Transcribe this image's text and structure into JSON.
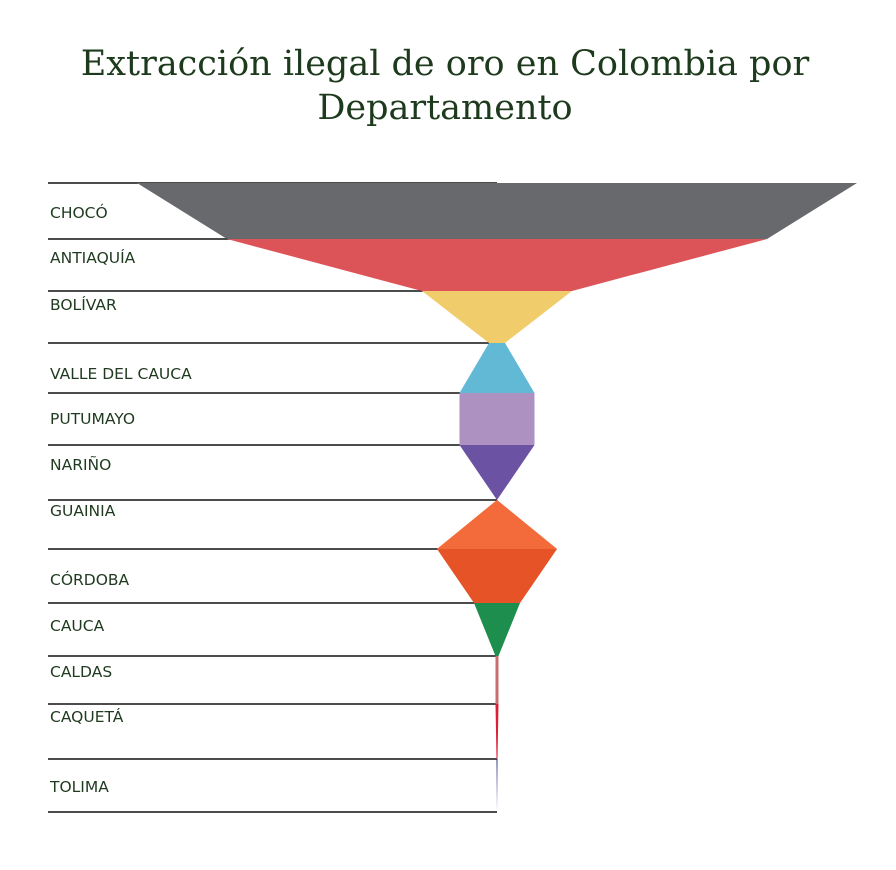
{
  "chart_data": {
    "type": "funnel",
    "title": "Extracción ilegal de oro en Colombia por\nDepartamento",
    "categories": [
      "CHOCÓ",
      "ANTIAQUÍA",
      "BOLÍVAR",
      "VALLE DEL CAUCA",
      "PUTUMAYO",
      "NARIÑO",
      "GUAINIA",
      "CÓRDOBA",
      "CAUCA",
      "CALDAS",
      "CAQUETÁ",
      "TOLIMA"
    ],
    "values": [
      720,
      540,
      150,
      16,
      75,
      75,
      0,
      120,
      46,
      3,
      3,
      1
    ],
    "colors": [
      "#67696c",
      "#dc5458",
      "#f0cc6b",
      "#62b9d6",
      "#ac91c1",
      "#6c52a3",
      "#ffffff",
      "#f46b3b",
      "#e55326",
      "#1e8e4e",
      "#c66e6e",
      "#dc1f35",
      "#2d3184"
    ]
  }
}
